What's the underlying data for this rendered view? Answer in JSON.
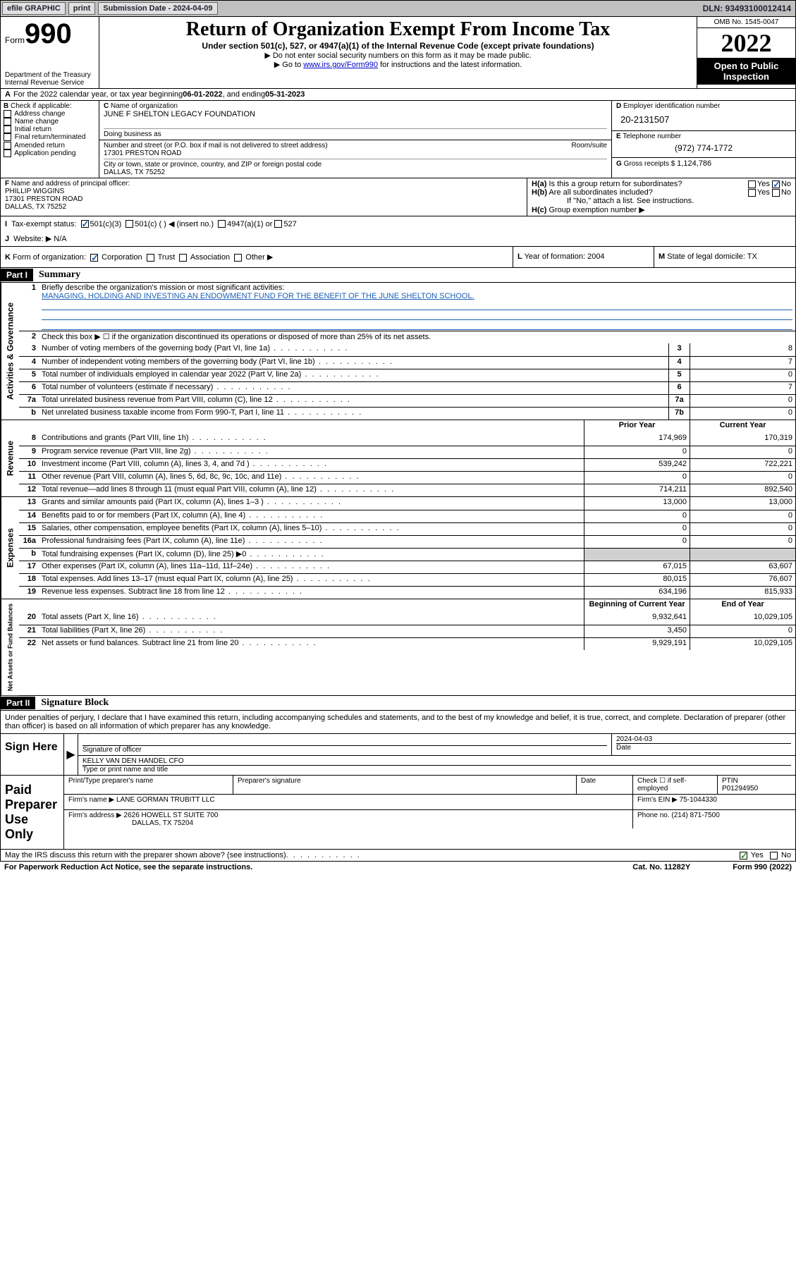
{
  "topbar": {
    "efile": "efile GRAPHIC",
    "print": "print",
    "submission_label": "Submission Date - 2024-04-09",
    "dln": "DLN: 93493100012414"
  },
  "header": {
    "form_label": "Form",
    "form_number": "990",
    "dept": "Department of the Treasury",
    "irs": "Internal Revenue Service",
    "title": "Return of Organization Exempt From Income Tax",
    "sub1": "Under section 501(c), 527, or 4947(a)(1) of the Internal Revenue Code (except private foundations)",
    "sub2": "▶ Do not enter social security numbers on this form as it may be made public.",
    "sub3_pre": "▶ Go to ",
    "sub3_link": "www.irs.gov/Form990",
    "sub3_post": " for instructions and the latest information.",
    "omb": "OMB No. 1545-0047",
    "year": "2022",
    "open": "Open to Public Inspection"
  },
  "row_a": {
    "label": "A",
    "text_pre": "For the 2022 calendar year, or tax year beginning ",
    "begin": "06-01-2022",
    "mid": " , and ending ",
    "end": "05-31-2023"
  },
  "b_checks": {
    "label": "B",
    "text": "Check if applicable:",
    "items": [
      "Address change",
      "Name change",
      "Initial return",
      "Final return/terminated",
      "Amended return",
      "Application pending"
    ]
  },
  "c_block": {
    "label": "C",
    "name_label": "Name of organization",
    "name": "JUNE F SHELTON LEGACY FOUNDATION",
    "dba_label": "Doing business as",
    "street_label": "Number and street (or P.O. box if mail is not delivered to street address)",
    "room_label": "Room/suite",
    "street": "17301 PRESTON ROAD",
    "city_label": "City or town, state or province, country, and ZIP or foreign postal code",
    "city": "DALLAS, TX  75252"
  },
  "d_block": {
    "label": "D",
    "ein_label": "Employer identification number",
    "ein": "20-2131507",
    "e_label": "E",
    "phone_label": "Telephone number",
    "phone": "(972) 774-1772",
    "g_label": "G",
    "gross_label": "Gross receipts $",
    "gross": "1,124,786"
  },
  "f_block": {
    "label": "F",
    "text": "Name and address of principal officer:",
    "name": "PHILLIP WIGGINS",
    "street": "17301 PRESTON ROAD",
    "city": "DALLAS, TX  75252"
  },
  "h_block": {
    "a_label": "H(a)",
    "a_text": "Is this a group return for subordinates?",
    "b_label": "H(b)",
    "b_text": "Are all subordinates included?",
    "b_note": "If \"No,\" attach a list. See instructions.",
    "c_label": "H(c)",
    "c_text": "Group exemption number ▶",
    "yes": "Yes",
    "no": "No"
  },
  "row_i": {
    "label": "I",
    "text": "Tax-exempt status:",
    "c3": "501(c)(3)",
    "c_other": "501(c) (  ) ◀ (insert no.)",
    "a1": "4947(a)(1) or",
    "s527": "527"
  },
  "row_j": {
    "label": "J",
    "text": "Website: ▶",
    "val": "N/A"
  },
  "row_k": {
    "label": "K",
    "text": "Form of organization:",
    "corp": "Corporation",
    "trust": "Trust",
    "assoc": "Association",
    "other": "Other ▶"
  },
  "row_l": {
    "label": "L",
    "text": "Year of formation:",
    "val": "2004"
  },
  "row_m": {
    "label": "M",
    "text": "State of legal domicile:",
    "val": "TX"
  },
  "part1": {
    "head": "Part I",
    "title": "Summary",
    "q1_num": "1",
    "q1": "Briefly describe the organization's mission or most significant activities:",
    "q1_val": "MANAGING, HOLDING AND INVESTING AN ENDOWMENT FUND FOR THE BENEFIT OF THE JUNE SHELTON SCHOOL.",
    "q2_num": "2",
    "q2": "Check this box ▶ ☐ if the organization discontinued its operations or disposed of more than 25% of its net assets."
  },
  "sections": {
    "activities": "Activities & Governance",
    "revenue": "Revenue",
    "expenses": "Expenses",
    "netassets": "Net Assets or Fund Balances"
  },
  "col_headers": {
    "prior": "Prior Year",
    "current": "Current Year",
    "begin": "Beginning of Current Year",
    "end": "End of Year"
  },
  "lines_gov": [
    {
      "n": "3",
      "d": "Number of voting members of the governing body (Part VI, line 1a)",
      "b": "3",
      "v": "8"
    },
    {
      "n": "4",
      "d": "Number of independent voting members of the governing body (Part VI, line 1b)",
      "b": "4",
      "v": "7"
    },
    {
      "n": "5",
      "d": "Total number of individuals employed in calendar year 2022 (Part V, line 2a)",
      "b": "5",
      "v": "0"
    },
    {
      "n": "6",
      "d": "Total number of volunteers (estimate if necessary)",
      "b": "6",
      "v": "7"
    },
    {
      "n": "7a",
      "d": "Total unrelated business revenue from Part VIII, column (C), line 12",
      "b": "7a",
      "v": "0"
    },
    {
      "n": "b",
      "d": "Net unrelated business taxable income from Form 990-T, Part I, line 11",
      "b": "7b",
      "v": "0"
    }
  ],
  "lines_rev": [
    {
      "n": "8",
      "d": "Contributions and grants (Part VIII, line 1h)",
      "p": "174,969",
      "c": "170,319"
    },
    {
      "n": "9",
      "d": "Program service revenue (Part VIII, line 2g)",
      "p": "0",
      "c": "0"
    },
    {
      "n": "10",
      "d": "Investment income (Part VIII, column (A), lines 3, 4, and 7d )",
      "p": "539,242",
      "c": "722,221"
    },
    {
      "n": "11",
      "d": "Other revenue (Part VIII, column (A), lines 5, 6d, 8c, 9c, 10c, and 11e)",
      "p": "0",
      "c": "0"
    },
    {
      "n": "12",
      "d": "Total revenue—add lines 8 through 11 (must equal Part VIII, column (A), line 12)",
      "p": "714,211",
      "c": "892,540"
    }
  ],
  "lines_exp": [
    {
      "n": "13",
      "d": "Grants and similar amounts paid (Part IX, column (A), lines 1–3 )",
      "p": "13,000",
      "c": "13,000"
    },
    {
      "n": "14",
      "d": "Benefits paid to or for members (Part IX, column (A), line 4)",
      "p": "0",
      "c": "0"
    },
    {
      "n": "15",
      "d": "Salaries, other compensation, employee benefits (Part IX, column (A), lines 5–10)",
      "p": "0",
      "c": "0"
    },
    {
      "n": "16a",
      "d": "Professional fundraising fees (Part IX, column (A), line 11e)",
      "p": "0",
      "c": "0"
    },
    {
      "n": "b",
      "d": "Total fundraising expenses (Part IX, column (D), line 25) ▶0",
      "p": "",
      "c": "",
      "shade": true
    },
    {
      "n": "17",
      "d": "Other expenses (Part IX, column (A), lines 11a–11d, 11f–24e)",
      "p": "67,015",
      "c": "63,607"
    },
    {
      "n": "18",
      "d": "Total expenses. Add lines 13–17 (must equal Part IX, column (A), line 25)",
      "p": "80,015",
      "c": "76,607"
    },
    {
      "n": "19",
      "d": "Revenue less expenses. Subtract line 18 from line 12",
      "p": "634,196",
      "c": "815,933"
    }
  ],
  "lines_net": [
    {
      "n": "20",
      "d": "Total assets (Part X, line 16)",
      "p": "9,932,641",
      "c": "10,029,105"
    },
    {
      "n": "21",
      "d": "Total liabilities (Part X, line 26)",
      "p": "3,450",
      "c": "0"
    },
    {
      "n": "22",
      "d": "Net assets or fund balances. Subtract line 21 from line 20",
      "p": "9,929,191",
      "c": "10,029,105"
    }
  ],
  "part2": {
    "head": "Part II",
    "title": "Signature Block",
    "decl": "Under penalties of perjury, I declare that I have examined this return, including accompanying schedules and statements, and to the best of my knowledge and belief, it is true, correct, and complete. Declaration of preparer (other than officer) is based on all information of which preparer has any knowledge."
  },
  "sign_here": {
    "label": "Sign Here",
    "sig_label": "Signature of officer",
    "date_label": "Date",
    "date": "2024-04-03",
    "name": "KELLY VAN DEN HANDEL CFO",
    "name_label": "Type or print name and title"
  },
  "paid_prep": {
    "label": "Paid Preparer Use Only",
    "h1": "Print/Type preparer's name",
    "h2": "Preparer's signature",
    "h3": "Date",
    "h4_pre": "Check ☐ if self-employed",
    "h5": "PTIN",
    "ptin": "P01294950",
    "firm_name_label": "Firm's name   ▶",
    "firm_name": "LANE GORMAN TRUBITT LLC",
    "firm_ein_label": "Firm's EIN ▶",
    "firm_ein": "75-1044330",
    "firm_addr_label": "Firm's address ▶",
    "firm_addr1": "2626 HOWELL ST SUITE 700",
    "firm_addr2": "DALLAS, TX  75204",
    "firm_phone_label": "Phone no.",
    "firm_phone": "(214) 871-7500"
  },
  "discuss": {
    "text": "May the IRS discuss this return with the preparer shown above? (see instructions)",
    "yes": "Yes",
    "no": "No"
  },
  "footer": {
    "l": "For Paperwork Reduction Act Notice, see the separate instructions.",
    "c": "Cat. No. 11282Y",
    "r": "Form 990 (2022)"
  }
}
